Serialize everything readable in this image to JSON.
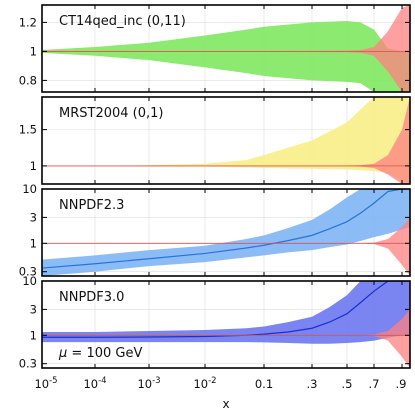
{
  "chart_data": [
    {
      "type": "area",
      "title": "CT14qed_inc (0,11)",
      "ylim": [
        0.72,
        1.32
      ],
      "yticks": [
        0.8,
        1,
        1.2
      ],
      "ytick_labels": [
        "0.8",
        "1",
        "1.2"
      ],
      "yscale": "linear",
      "x": [
        1e-05,
        0.0001,
        0.001,
        0.01,
        0.05,
        0.1,
        0.3,
        0.5,
        0.6,
        0.7,
        0.8,
        0.9,
        0.95
      ],
      "series": [
        {
          "color": "#80e860",
          "upper": [
            1.01,
            1.03,
            1.06,
            1.11,
            1.15,
            1.17,
            1.2,
            1.21,
            1.2,
            1.15,
            1.02,
            1.0,
            1.0
          ],
          "lower": [
            0.99,
            0.97,
            0.94,
            0.89,
            0.85,
            0.83,
            0.8,
            0.79,
            0.78,
            0.72,
            0.72,
            0.72,
            0.72
          ],
          "central": [
            1,
            1,
            1,
            1,
            1,
            1,
            1,
            1,
            1,
            1,
            1,
            1,
            1
          ]
        },
        {
          "color": "#ff8080",
          "upper": [
            1.005,
            1.004,
            1.003,
            1.003,
            1.003,
            1.003,
            1.004,
            1.006,
            1.01,
            1.03,
            1.14,
            1.3,
            1.32
          ],
          "lower": [
            0.995,
            0.996,
            0.997,
            0.997,
            0.997,
            0.997,
            0.996,
            0.994,
            0.99,
            0.97,
            0.86,
            0.72,
            0.72
          ],
          "central": [
            1,
            1,
            1,
            1,
            1,
            1,
            1,
            1,
            1,
            1,
            1,
            1,
            1
          ]
        }
      ]
    },
    {
      "type": "area",
      "title": "MRST2004 (0,1)",
      "ylim": [
        0.75,
        1.95
      ],
      "yticks": [
        1,
        1.5
      ],
      "ytick_labels": [
        "1",
        "1.5"
      ],
      "yscale": "linear",
      "x": [
        1e-05,
        0.0001,
        0.001,
        0.01,
        0.05,
        0.1,
        0.3,
        0.5,
        0.6,
        0.7,
        0.8,
        0.9,
        0.95
      ],
      "series": [
        {
          "color": "#f7ee86",
          "upper": [
            1.0,
            1.0,
            1.01,
            1.03,
            1.08,
            1.15,
            1.35,
            1.6,
            1.78,
            1.95,
            1.95,
            1.95,
            1.95
          ],
          "lower": [
            1.0,
            0.995,
            0.99,
            0.99,
            0.98,
            0.97,
            0.96,
            0.95,
            0.94,
            0.93,
            0.9,
            0.8,
            0.75
          ],
          "central": [
            1,
            1,
            1,
            1,
            1,
            1,
            1,
            1,
            1,
            1,
            1,
            1,
            1
          ]
        },
        {
          "color": "#ff8080",
          "upper": [
            1.005,
            1.004,
            1.003,
            1.003,
            1.003,
            1.003,
            1.004,
            1.006,
            1.01,
            1.03,
            1.15,
            1.5,
            1.95
          ],
          "lower": [
            0.995,
            0.996,
            0.997,
            0.997,
            0.997,
            0.997,
            0.996,
            0.994,
            0.99,
            0.97,
            0.88,
            0.75,
            0.75
          ],
          "central": [
            1,
            1,
            1,
            1,
            1,
            1,
            1,
            1,
            1,
            1,
            1,
            1,
            1
          ]
        }
      ]
    },
    {
      "type": "area",
      "title": "NNPDF2.3",
      "ylim": [
        0.25,
        10
      ],
      "yticks": [
        0.3,
        1,
        3,
        10
      ],
      "ytick_labels": [
        "0.3",
        "1",
        "3",
        "10"
      ],
      "yscale": "log",
      "x": [
        1e-05,
        0.0001,
        0.001,
        0.01,
        0.05,
        0.1,
        0.2,
        0.3,
        0.4,
        0.5,
        0.6,
        0.7,
        0.8,
        0.9,
        0.95
      ],
      "series": [
        {
          "color": "#7fb5f5",
          "upper": [
            0.5,
            0.6,
            0.75,
            0.9,
            1.2,
            1.4,
            1.9,
            2.7,
            4.2,
            7.0,
            10,
            10,
            10,
            10,
            10
          ],
          "lower": [
            0.25,
            0.3,
            0.38,
            0.45,
            0.55,
            0.6,
            0.68,
            0.75,
            0.85,
            0.95,
            1.1,
            1.3,
            1.5,
            1.8,
            2.0
          ],
          "central": [
            0.35,
            0.42,
            0.52,
            0.65,
            0.82,
            0.92,
            1.12,
            1.4,
            1.85,
            2.5,
            3.6,
            5.5,
            9.0,
            10,
            10
          ],
          "line_color": "#2a72d8"
        },
        {
          "color": "#ff8080",
          "upper": [
            1.005,
            1.004,
            1.003,
            1.003,
            1.003,
            1.003,
            1.003,
            1.004,
            1.005,
            1.006,
            1.01,
            1.03,
            1.2,
            2.0,
            3.0
          ],
          "lower": [
            0.995,
            0.996,
            0.997,
            0.997,
            0.997,
            0.997,
            0.997,
            0.996,
            0.995,
            0.994,
            0.99,
            0.97,
            0.8,
            0.4,
            0.25
          ],
          "central": [
            1,
            1,
            1,
            1,
            1,
            1,
            1,
            1,
            1,
            1,
            1,
            1,
            1,
            1,
            1
          ]
        }
      ]
    },
    {
      "type": "area",
      "title": "NNPDF3.0",
      "ylim": [
        0.25,
        10
      ],
      "yticks": [
        0.3,
        1,
        3,
        10
      ],
      "ytick_labels": [
        "0.3",
        "1",
        "3",
        "10"
      ],
      "yscale": "log",
      "x": [
        1e-05,
        0.0001,
        0.001,
        0.01,
        0.05,
        0.1,
        0.2,
        0.3,
        0.4,
        0.5,
        0.6,
        0.7,
        0.8,
        0.9,
        0.95
      ],
      "series": [
        {
          "color": "#6d78f0",
          "upper": [
            1.15,
            1.15,
            1.2,
            1.25,
            1.35,
            1.45,
            1.75,
            2.2,
            3.3,
            5.5,
            10,
            10,
            10,
            10,
            10
          ],
          "lower": [
            0.75,
            0.75,
            0.75,
            0.75,
            0.75,
            0.74,
            0.72,
            0.7,
            0.7,
            0.72,
            0.75,
            0.8,
            0.9,
            1.0,
            1.0
          ],
          "central": [
            0.92,
            0.92,
            0.93,
            0.95,
            1.0,
            1.05,
            1.15,
            1.35,
            1.75,
            2.5,
            4.0,
            6.5,
            10,
            10,
            10
          ],
          "line_color": "#1b2fd0"
        },
        {
          "color": "#ff8080",
          "upper": [
            1.005,
            1.004,
            1.003,
            1.003,
            1.003,
            1.003,
            1.003,
            1.004,
            1.005,
            1.006,
            1.01,
            1.03,
            1.2,
            2.0,
            3.0
          ],
          "lower": [
            0.995,
            0.996,
            0.997,
            0.997,
            0.997,
            0.997,
            0.997,
            0.996,
            0.995,
            0.994,
            0.99,
            0.97,
            0.8,
            0.4,
            0.25
          ],
          "central": [
            1,
            1,
            1,
            1,
            1,
            1,
            1,
            1,
            1,
            1,
            1,
            1,
            1,
            1,
            1
          ]
        }
      ],
      "annotation": "μ = 100 GeV"
    }
  ],
  "x_axis": {
    "label": "x",
    "scale": "logit",
    "xlim": [
      1e-05,
      0.95
    ],
    "ticks": [
      1e-05,
      0.0001,
      0.001,
      0.01,
      0.1,
      0.3,
      0.5,
      0.7,
      0.9
    ],
    "tick_labels": [
      "10-5",
      "10-4",
      "10-3",
      "10-2",
      "0.1",
      ".3",
      ".5",
      ".7",
      ".9"
    ]
  },
  "grid": true
}
